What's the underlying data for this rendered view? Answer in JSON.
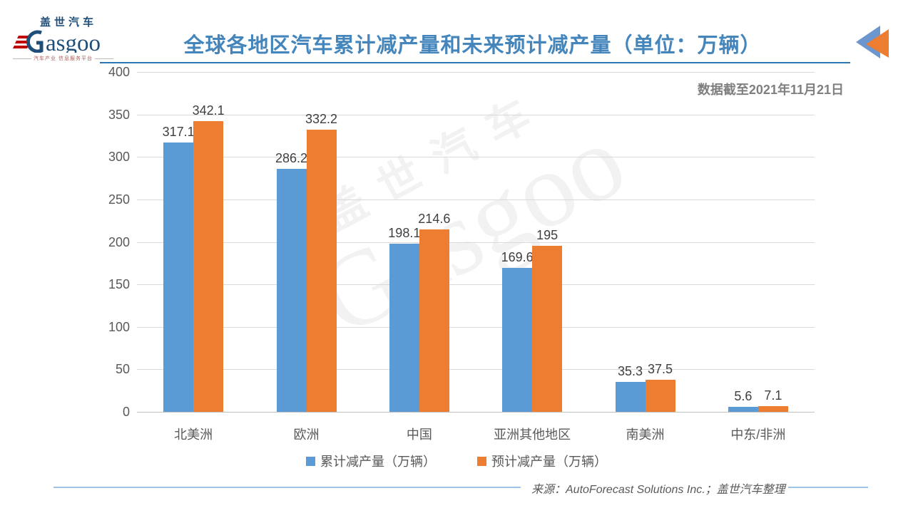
{
  "logo": {
    "brand_cn": "盖世汽车",
    "brand_en_rest": "asgoo",
    "tagline": "汽车产业 信息服务平台"
  },
  "header": {
    "title": "全球各地区汽车累计减产量和未来预计减产量（单位：万辆）",
    "note": "数据截至2021年11月21日"
  },
  "watermark": {
    "line1": "盖世汽车",
    "line2": "Gasgoo"
  },
  "chart_data": {
    "type": "bar",
    "title": "全球各地区汽车累计减产量和未来预计减产量（单位：万辆）",
    "categories": [
      "北美洲",
      "欧洲",
      "中国",
      "亚洲其他地区",
      "南美洲",
      "中东/非洲"
    ],
    "series": [
      {
        "name": "累计减产量（万辆）",
        "color": "#5B9BD5",
        "values": [
          317.1,
          286.2,
          198.1,
          169.6,
          35.3,
          5.6
        ]
      },
      {
        "name": "预计减产量（万辆）",
        "color": "#ED7D31",
        "values": [
          342.1,
          332.2,
          214.6,
          195,
          37.5,
          7.1
        ]
      }
    ],
    "xlabel": "",
    "ylabel": "",
    "ylim": [
      0,
      400
    ],
    "ytick_step": 50,
    "grid": true,
    "legend_position": "bottom"
  },
  "footer": {
    "source": "来源：AutoForecast Solutions Inc.；盖世汽车整理"
  },
  "colors": {
    "series1": "#5B9BD5",
    "series2": "#ED7D31",
    "title_blue": "#4486BC",
    "underline_blue": "#2E75B6",
    "grid_gray": "#D9D9D9",
    "axis_text": "#595959",
    "value_text": "#3F3F3F",
    "note_text": "#7F7F7F",
    "footer_line_blue": "#9DC3E6",
    "logo_navy": "#1F4E79",
    "logo_red": "#C00000",
    "icon_blue": "#6B96CE",
    "icon_orange": "#ED7D31"
  }
}
